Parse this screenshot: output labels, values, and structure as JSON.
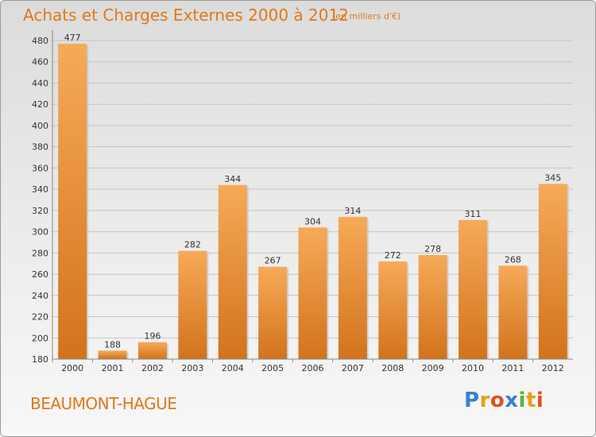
{
  "title": "Achats et Charges Externes 2000 à 2012",
  "unit_note": "(en milliers d'€)",
  "commune": "BEAUMONT-HAGUE",
  "logo": {
    "letters": [
      {
        "char": "P",
        "color": "#3a7fd0"
      },
      {
        "char": "r",
        "color": "#e8a010"
      },
      {
        "char": "o",
        "color": "#e05020"
      },
      {
        "char": "x",
        "color": "#3a7fd0"
      },
      {
        "char": "i",
        "color": "#60b030"
      },
      {
        "char": "t",
        "color": "#e8a010"
      },
      {
        "char": "i",
        "color": "#e05020"
      }
    ]
  },
  "colors": {
    "accent": "#e07818",
    "bar_light": "#f6aa58",
    "bar_dark": "#d2731c",
    "grid": "#c4c4c4"
  },
  "chart_data": {
    "type": "bar",
    "title": "Achats et Charges Externes 2000 à 2012",
    "categories": [
      "2000",
      "2001",
      "2002",
      "2003",
      "2004",
      "2005",
      "2006",
      "2007",
      "2008",
      "2009",
      "2010",
      "2011",
      "2012"
    ],
    "values": [
      477,
      188,
      196,
      282,
      344,
      267,
      304,
      314,
      272,
      278,
      311,
      268,
      345
    ],
    "ylim": [
      180,
      480
    ],
    "yticks": [
      180,
      200,
      220,
      240,
      260,
      280,
      300,
      320,
      340,
      360,
      380,
      400,
      420,
      440,
      460,
      480
    ],
    "grid": true,
    "legend": "none"
  }
}
